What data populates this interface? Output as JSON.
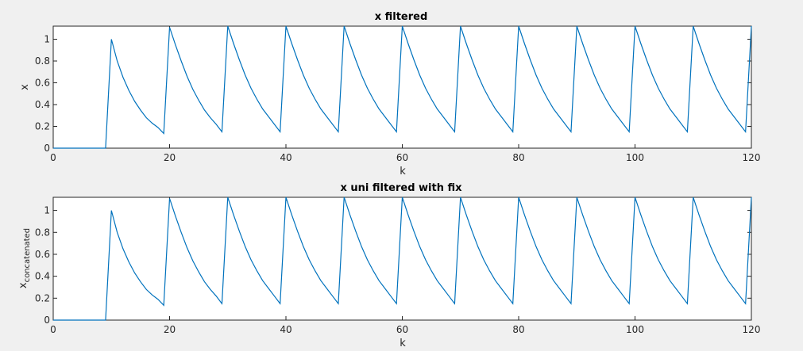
{
  "figure": {
    "background": "#f0f0f0",
    "axes_color": "#262626",
    "line_color": "#0072bd"
  },
  "chart_data": [
    {
      "type": "line",
      "title": "x filtered",
      "xlabel": "k",
      "ylabel": "x",
      "ylabel_subscript": "",
      "xlim": [
        0,
        120
      ],
      "ylim": [
        0,
        1.12
      ],
      "xticks": [
        0,
        20,
        40,
        60,
        80,
        100,
        120
      ],
      "yticks": [
        0,
        0.2,
        0.4,
        0.6,
        0.8,
        1
      ],
      "xtick_labels": [
        "0",
        "20",
        "40",
        "60",
        "80",
        "100",
        "120"
      ],
      "ytick_labels": [
        "0",
        "0.2",
        "0.4",
        "0.6",
        "0.8",
        "1"
      ],
      "grid": false,
      "series": [
        {
          "x": [
            0,
            9,
            10,
            11,
            12,
            13,
            14,
            15,
            16,
            17,
            18,
            19,
            20,
            21,
            22,
            23,
            24,
            25,
            26,
            27,
            28,
            29,
            30,
            31,
            32,
            33,
            34,
            35,
            36,
            37,
            38,
            39,
            40,
            41,
            42,
            43,
            44,
            45,
            46,
            47,
            48,
            49,
            50,
            51,
            52,
            53,
            54,
            55,
            56,
            57,
            58,
            59,
            60,
            61,
            62,
            63,
            64,
            65,
            66,
            67,
            68,
            69,
            70,
            71,
            72,
            73,
            74,
            75,
            76,
            77,
            78,
            79,
            80,
            81,
            82,
            83,
            84,
            85,
            86,
            87,
            88,
            89,
            90,
            91,
            92,
            93,
            94,
            95,
            96,
            97,
            98,
            99,
            100,
            101,
            102,
            103,
            104,
            105,
            106,
            107,
            108,
            109,
            110,
            111,
            112,
            113,
            114,
            115,
            116,
            117,
            118,
            119,
            120
          ],
          "y": [
            0,
            0,
            1.0,
            0.8,
            0.65,
            0.53,
            0.43,
            0.35,
            0.28,
            0.23,
            0.19,
            0.135,
            1.11,
            0.95,
            0.8,
            0.66,
            0.54,
            0.44,
            0.35,
            0.28,
            0.22,
            0.15,
            1.12,
            0.96,
            0.81,
            0.67,
            0.55,
            0.45,
            0.36,
            0.29,
            0.22,
            0.15,
            1.12,
            0.96,
            0.81,
            0.67,
            0.55,
            0.45,
            0.36,
            0.29,
            0.22,
            0.15,
            1.12,
            0.96,
            0.81,
            0.67,
            0.55,
            0.45,
            0.36,
            0.29,
            0.22,
            0.15,
            1.12,
            0.96,
            0.81,
            0.67,
            0.55,
            0.45,
            0.36,
            0.29,
            0.22,
            0.15,
            1.12,
            0.96,
            0.81,
            0.67,
            0.55,
            0.45,
            0.36,
            0.29,
            0.22,
            0.15,
            1.12,
            0.96,
            0.81,
            0.67,
            0.55,
            0.45,
            0.36,
            0.29,
            0.22,
            0.15,
            1.12,
            0.96,
            0.81,
            0.67,
            0.55,
            0.45,
            0.36,
            0.29,
            0.22,
            0.15,
            1.12,
            0.96,
            0.81,
            0.67,
            0.55,
            0.45,
            0.36,
            0.29,
            0.22,
            0.15,
            1.12,
            0.96,
            0.81,
            0.67,
            0.55,
            0.45,
            0.36,
            0.29,
            0.22,
            0.15,
            1.12
          ]
        }
      ]
    },
    {
      "type": "line",
      "title": "x uni filtered with fix",
      "xlabel": "k",
      "ylabel": "x",
      "ylabel_subscript": "concatenated",
      "xlim": [
        0,
        120
      ],
      "ylim": [
        0,
        1.12
      ],
      "xticks": [
        0,
        20,
        40,
        60,
        80,
        100,
        120
      ],
      "yticks": [
        0,
        0.2,
        0.4,
        0.6,
        0.8,
        1
      ],
      "xtick_labels": [
        "0",
        "20",
        "40",
        "60",
        "80",
        "100",
        "120"
      ],
      "ytick_labels": [
        "0",
        "0.2",
        "0.4",
        "0.6",
        "0.8",
        "1"
      ],
      "grid": false,
      "series": [
        {
          "x": [
            0,
            9,
            10,
            11,
            12,
            13,
            14,
            15,
            16,
            17,
            18,
            19,
            20,
            21,
            22,
            23,
            24,
            25,
            26,
            27,
            28,
            29,
            30,
            31,
            32,
            33,
            34,
            35,
            36,
            37,
            38,
            39,
            40,
            41,
            42,
            43,
            44,
            45,
            46,
            47,
            48,
            49,
            50,
            51,
            52,
            53,
            54,
            55,
            56,
            57,
            58,
            59,
            60,
            61,
            62,
            63,
            64,
            65,
            66,
            67,
            68,
            69,
            70,
            71,
            72,
            73,
            74,
            75,
            76,
            77,
            78,
            79,
            80,
            81,
            82,
            83,
            84,
            85,
            86,
            87,
            88,
            89,
            90,
            91,
            92,
            93,
            94,
            95,
            96,
            97,
            98,
            99,
            100,
            101,
            102,
            103,
            104,
            105,
            106,
            107,
            108,
            109,
            110,
            111,
            112,
            113,
            114,
            115,
            116,
            117,
            118,
            119,
            120
          ],
          "y": [
            0,
            0,
            1.0,
            0.8,
            0.65,
            0.53,
            0.43,
            0.35,
            0.28,
            0.23,
            0.19,
            0.135,
            1.11,
            0.95,
            0.8,
            0.66,
            0.54,
            0.44,
            0.35,
            0.28,
            0.22,
            0.15,
            1.12,
            0.96,
            0.81,
            0.67,
            0.55,
            0.45,
            0.36,
            0.29,
            0.22,
            0.15,
            1.12,
            0.96,
            0.81,
            0.67,
            0.55,
            0.45,
            0.36,
            0.29,
            0.22,
            0.15,
            1.12,
            0.96,
            0.81,
            0.67,
            0.55,
            0.45,
            0.36,
            0.29,
            0.22,
            0.15,
            1.12,
            0.96,
            0.81,
            0.67,
            0.55,
            0.45,
            0.36,
            0.29,
            0.22,
            0.15,
            1.12,
            0.96,
            0.81,
            0.67,
            0.55,
            0.45,
            0.36,
            0.29,
            0.22,
            0.15,
            1.12,
            0.96,
            0.81,
            0.67,
            0.55,
            0.45,
            0.36,
            0.29,
            0.22,
            0.15,
            1.12,
            0.96,
            0.81,
            0.67,
            0.55,
            0.45,
            0.36,
            0.29,
            0.22,
            0.15,
            1.12,
            0.96,
            0.81,
            0.67,
            0.55,
            0.45,
            0.36,
            0.29,
            0.22,
            0.15,
            1.12,
            0.96,
            0.81,
            0.67,
            0.55,
            0.45,
            0.36,
            0.29,
            0.22,
            0.15,
            1.12
          ]
        }
      ]
    }
  ]
}
